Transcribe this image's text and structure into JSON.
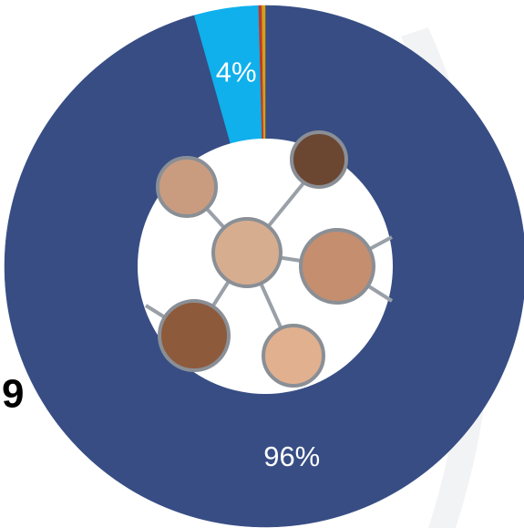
{
  "chart_data": {
    "type": "donut",
    "values": [
      96,
      4,
      0.2,
      0.2
    ],
    "value_labels": [
      "96%",
      "4%",
      null,
      null
    ],
    "colors": [
      "#374d84",
      "#0fb0ec",
      "#c0392b",
      "#d4a017"
    ]
  }
}
